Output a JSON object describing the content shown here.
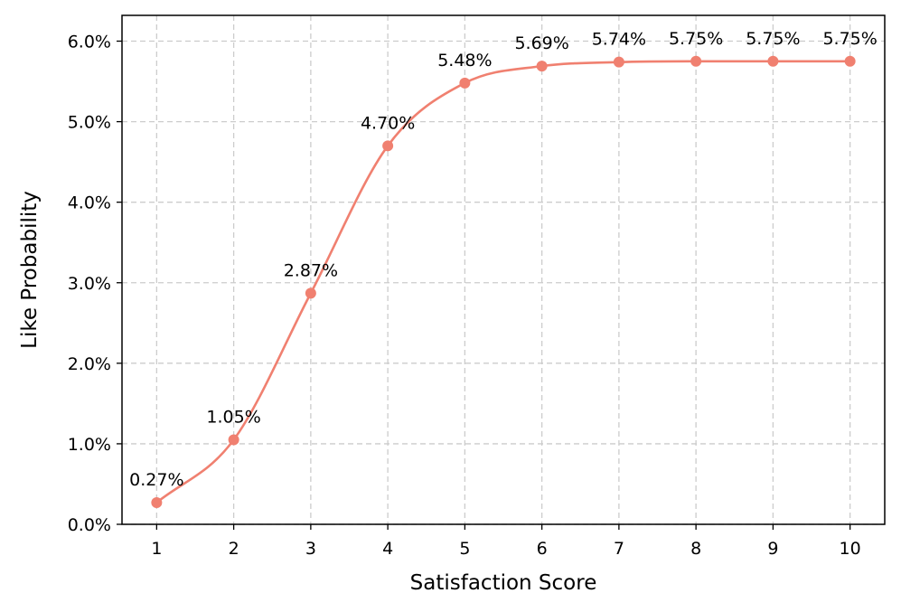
{
  "chart_data": {
    "type": "line",
    "title": "",
    "xlabel": "Satisfaction Score",
    "ylabel": "Like Probability",
    "x": [
      1,
      2,
      3,
      4,
      5,
      6,
      7,
      8,
      9,
      10
    ],
    "series": [
      {
        "values": [
          0.27,
          1.05,
          2.87,
          4.7,
          5.48,
          5.69,
          5.74,
          5.75,
          5.75,
          5.75
        ],
        "labels": [
          "0.27%",
          "1.05%",
          "2.87%",
          "4.70%",
          "5.48%",
          "5.69%",
          "5.74%",
          "5.75%",
          "5.75%",
          "5.75%"
        ],
        "color": "#F08070"
      }
    ],
    "xticks": [
      "1",
      "2",
      "3",
      "4",
      "5",
      "6",
      "7",
      "8",
      "9",
      "10"
    ],
    "yticks": [
      0,
      1,
      2,
      3,
      4,
      5,
      6
    ],
    "ytick_labels": [
      "0.0%",
      "1.0%",
      "2.0%",
      "3.0%",
      "4.0%",
      "5.0%",
      "6.0%"
    ],
    "xlim": [
      0.55,
      10.45
    ],
    "ylim": [
      0,
      6.32
    ],
    "grid": true,
    "line_style": "smooth",
    "marker": "circle"
  }
}
